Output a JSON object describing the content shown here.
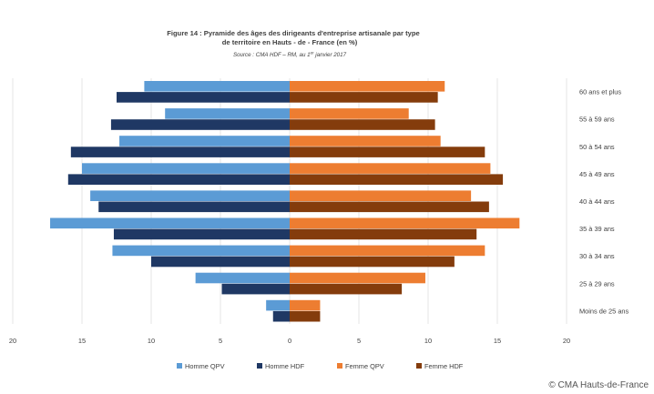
{
  "chart_data": {
    "type": "bar",
    "orientation": "horizontal",
    "title_lines": [
      "Figure 14 : Pyramide des âges des dirigeants d'entreprise artisanale par type",
      "de territoire en Hauts - de - France (en %)"
    ],
    "source": "Source : CMA HDF – RM, au 1er janvier 2017",
    "categories": [
      "60 ans et plus",
      "55 à 59 ans",
      "50 à 54 ans",
      "45 à 49 ans",
      "40 à 44 ans",
      "35 à 39 ans",
      "30 à 34 ans",
      "25 à 29 ans",
      "Moins de 25 ans"
    ],
    "series": [
      {
        "name": "Homme QPV",
        "side": "left",
        "color": "#5B9BD5",
        "values": [
          10.5,
          9.0,
          12.3,
          15.0,
          14.4,
          17.3,
          12.8,
          6.8,
          1.7
        ]
      },
      {
        "name": "Homme HDF",
        "side": "left",
        "color": "#1F3864",
        "values": [
          12.5,
          12.9,
          15.8,
          16.0,
          13.8,
          12.7,
          10.0,
          4.9,
          1.2
        ]
      },
      {
        "name": "Femme QPV",
        "side": "right",
        "color": "#ED7D31",
        "values": [
          11.2,
          8.6,
          10.9,
          14.5,
          13.1,
          16.6,
          14.1,
          9.8,
          2.2
        ]
      },
      {
        "name": "Femme  HDF",
        "side": "right",
        "color": "#843C0C",
        "values": [
          10.7,
          10.5,
          14.1,
          15.4,
          14.4,
          13.5,
          11.9,
          8.1,
          2.2
        ]
      }
    ],
    "x_ticks": [
      "20",
      "15",
      "10",
      "5",
      "0",
      "5",
      "10",
      "15",
      "20"
    ],
    "xlim": [
      -20,
      20
    ],
    "grid": true,
    "legend_position": "bottom"
  },
  "copyright": "© CMA Hauts-de-France",
  "colors": {
    "gridline": "#d9d9d9"
  }
}
